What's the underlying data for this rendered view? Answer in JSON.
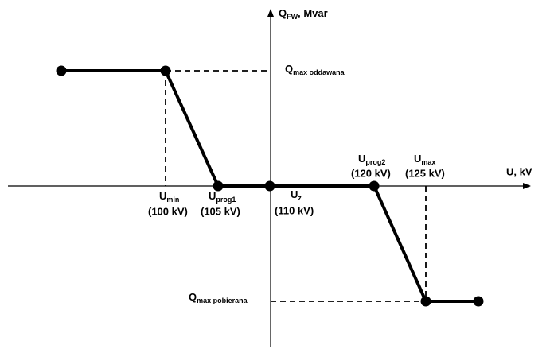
{
  "axes": {
    "y_label": {
      "main": "Q",
      "sub": "FW",
      "rest": ", Mvar"
    },
    "x_label": "U, kV"
  },
  "levels": [
    {
      "main": "Q",
      "sub": "max oddawana"
    },
    {
      "main": "Q",
      "sub": "max pobierana"
    }
  ],
  "points": [
    {
      "main": "U",
      "sub": "min",
      "value": "(100 kV)"
    },
    {
      "main": "U",
      "sub": "prog1",
      "value": "(105 kV)"
    },
    {
      "main": "U",
      "sub": "z",
      "value": "(110 kV)"
    },
    {
      "main": "U",
      "sub": "prog2",
      "value": "(120 kV)"
    },
    {
      "main": "U",
      "sub": "max",
      "value": "(125 kV)"
    }
  ]
}
